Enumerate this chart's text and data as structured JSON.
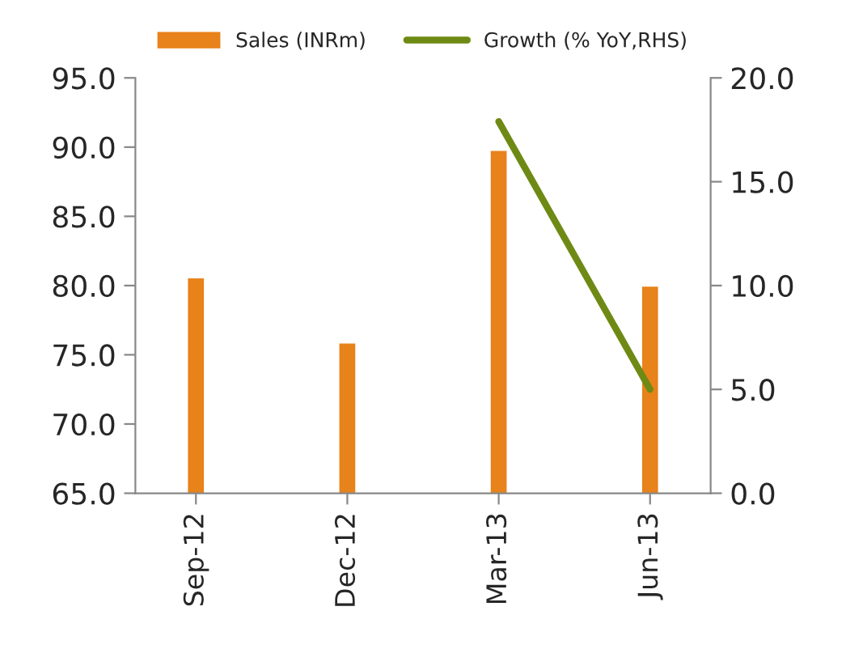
{
  "chart_data": {
    "type": "bar",
    "categories": [
      "Sep-12",
      "Dec-12",
      "Mar-13",
      "Jun-13"
    ],
    "series": [
      {
        "name": "Sales (INRm)",
        "color": "#e8821a",
        "values": [
          80.6,
          75.9,
          89.8,
          80.0
        ]
      },
      {
        "name": "Growth (% YoY,RHS)",
        "color": "#6f8a14",
        "type": "line",
        "axis": "y2",
        "values": [
          null,
          null,
          17.9,
          5.0
        ]
      }
    ],
    "ylim": [
      65,
      95
    ],
    "yticks": [
      {
        "value": 65,
        "label": "65.0"
      },
      {
        "value": 70,
        "label": "70.0"
      },
      {
        "value": 75,
        "label": "75.0"
      },
      {
        "value": 80,
        "label": "80.0"
      },
      {
        "value": 85,
        "label": "85.0"
      },
      {
        "value": 90,
        "label": "90.0"
      },
      {
        "value": 95,
        "label": "95.0"
      }
    ],
    "y2lim": [
      0,
      20
    ],
    "y2ticks": [
      {
        "value": 0,
        "label": "0.0"
      },
      {
        "value": 5,
        "label": "5.0"
      },
      {
        "value": 10,
        "label": "10.0"
      },
      {
        "value": 15,
        "label": "15.0"
      },
      {
        "value": 20,
        "label": "20.0"
      }
    ],
    "legend": "top",
    "grid": false
  }
}
